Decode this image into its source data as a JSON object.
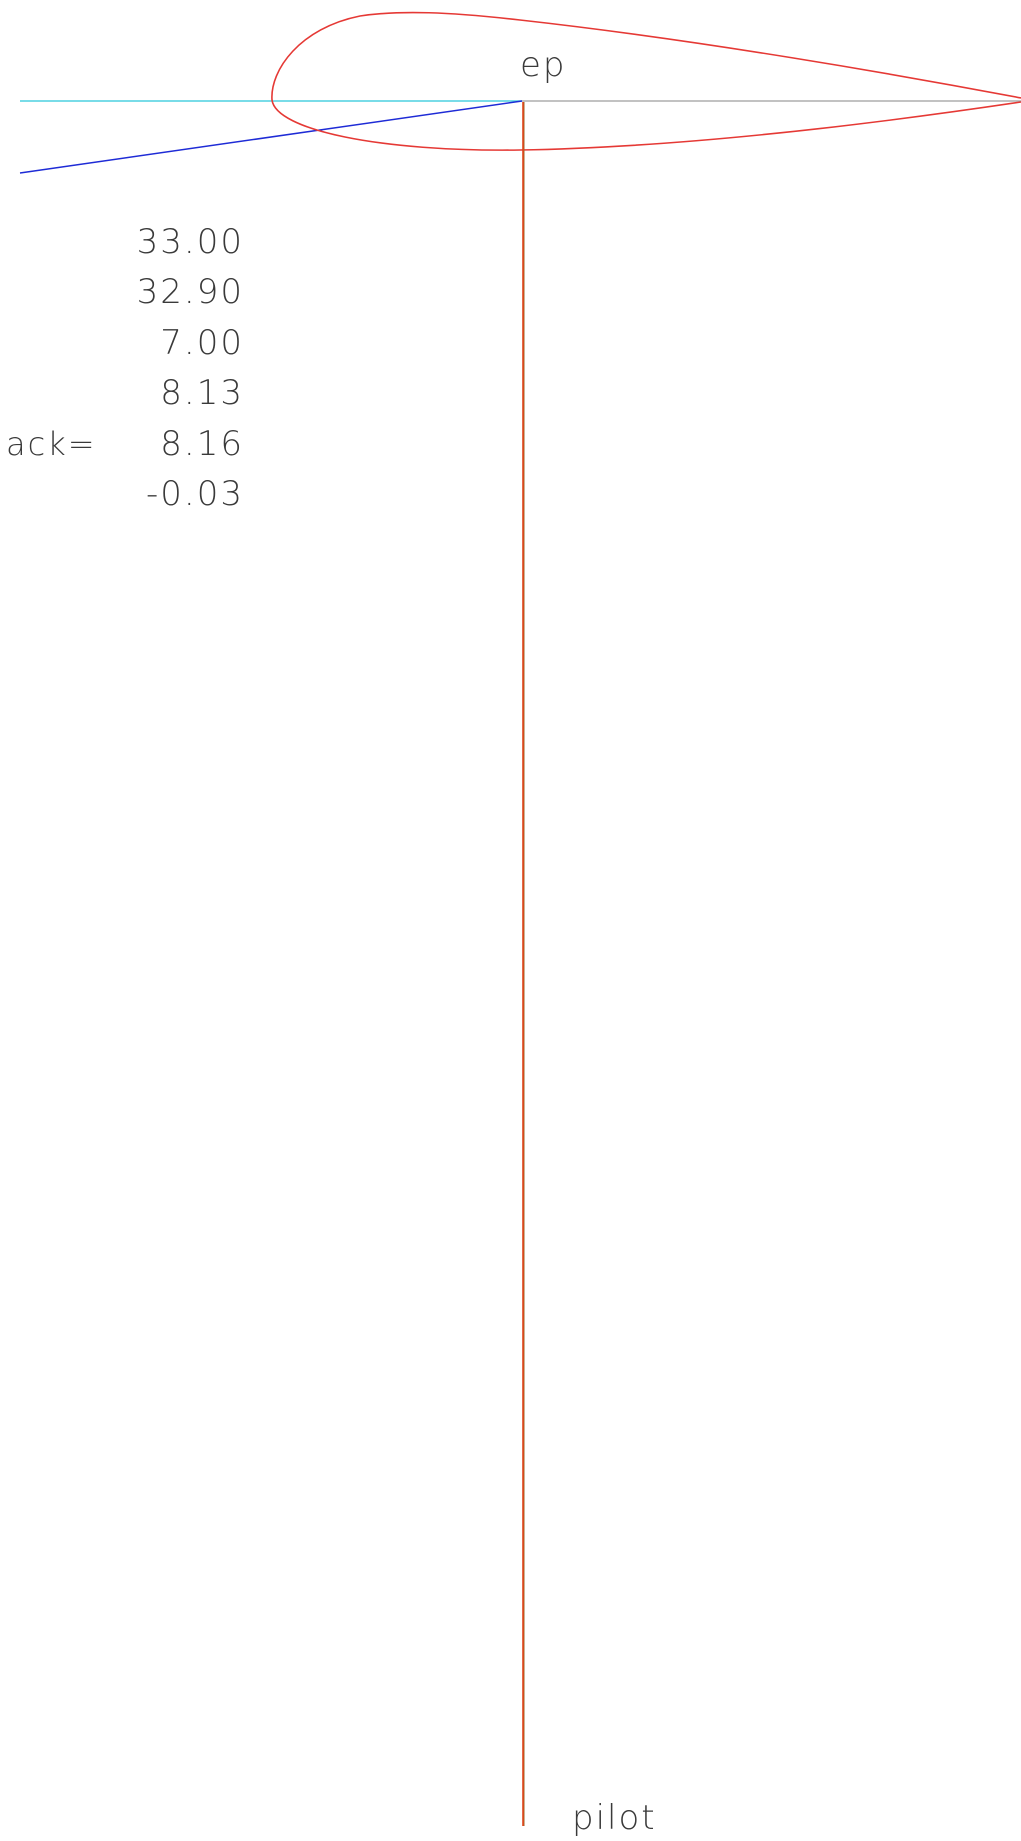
{
  "labels": {
    "center_point": "ep",
    "bottom": "pilot",
    "left_label": "ack="
  },
  "values": [
    "33.00",
    "32.90",
    "7.00",
    "8.13",
    "8.16",
    "-0.03"
  ],
  "colors": {
    "airfoil": "#e53935",
    "chord_line": "#9e9e9e",
    "horizontal_ref": "#4dd0e1",
    "angle_line": "#1e2bd6",
    "pilot_line": "#e0441a",
    "pilot_line_shadow": "#9a6a2a",
    "text": "#3a3a3a"
  }
}
